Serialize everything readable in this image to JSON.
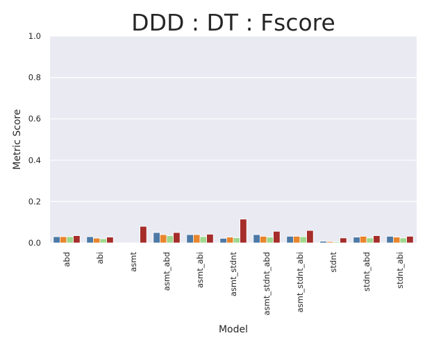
{
  "chart_data": {
    "type": "bar",
    "title": "DDD : DT : Fscore",
    "xlabel": "Model",
    "ylabel": "Metric Score",
    "ylim": [
      0,
      1.0
    ],
    "yticks": [
      "0.0",
      "0.2",
      "0.4",
      "0.6",
      "0.8",
      "1.0"
    ],
    "grid": true,
    "legend": "none",
    "categories": [
      "abd",
      "abi",
      "asmt",
      "asmt_abd",
      "asmt_abi",
      "asmt_stdnt",
      "asmt_stdnt_abd",
      "asmt_stdnt_abi",
      "stdnt",
      "stdnt_abd",
      "stdnt_abi"
    ],
    "series": [
      {
        "color": "#4c79a6",
        "values": [
          0.03,
          0.03,
          0.0,
          0.05,
          0.04,
          0.022,
          0.04,
          0.032,
          0.008,
          0.028,
          0.032
        ]
      },
      {
        "color": "#e8852d",
        "values": [
          0.03,
          0.023,
          0.0,
          0.04,
          0.04,
          0.028,
          0.032,
          0.032,
          0.006,
          0.032,
          0.028
        ]
      },
      {
        "color": "#9ed88e",
        "values": [
          0.03,
          0.02,
          0.0,
          0.035,
          0.03,
          0.025,
          0.028,
          0.03,
          0.005,
          0.024,
          0.024
        ]
      },
      {
        "color": "#a52d2a",
        "values": [
          0.035,
          0.028,
          0.08,
          0.05,
          0.042,
          0.115,
          0.056,
          0.06,
          0.024,
          0.035,
          0.032
        ]
      }
    ]
  }
}
